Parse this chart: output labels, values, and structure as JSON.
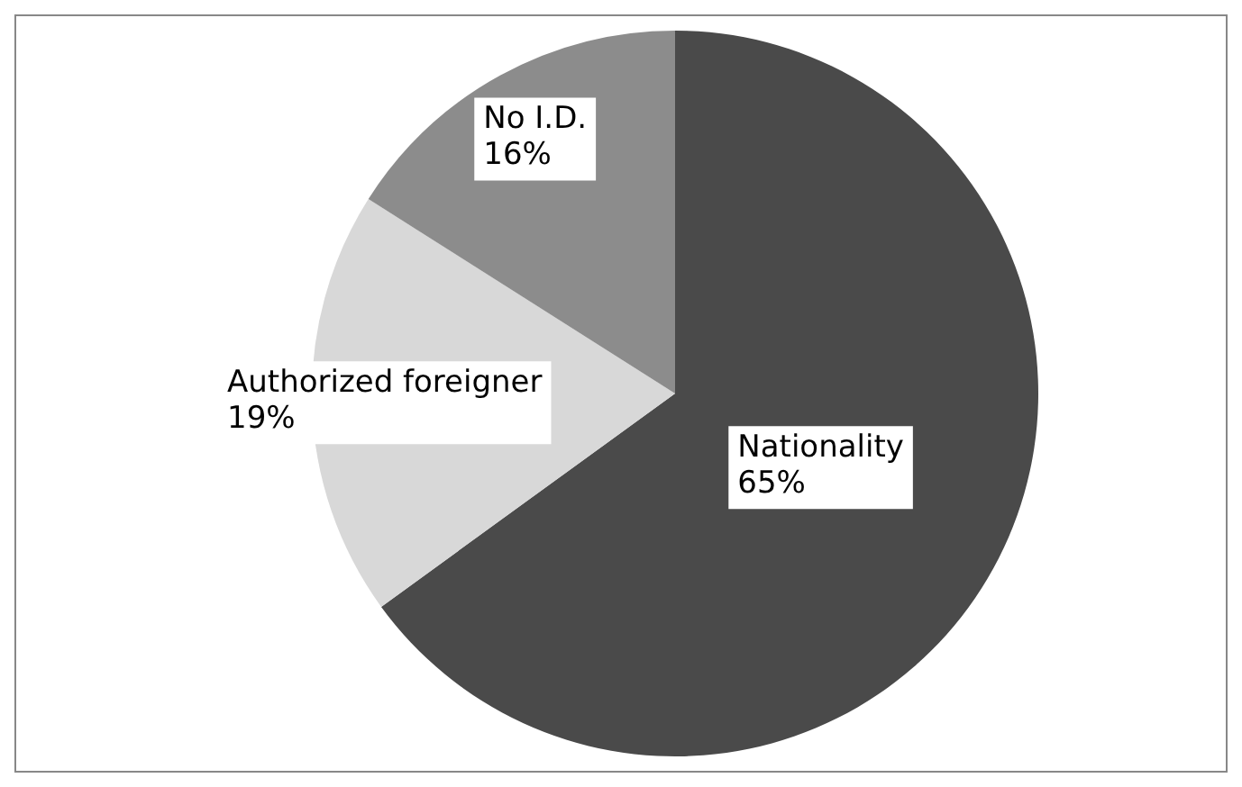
{
  "chart_data": {
    "type": "pie",
    "categories": [
      "Nationality",
      "Authorized foreigner",
      "No I.D."
    ],
    "values": [
      65,
      19,
      16
    ],
    "colors": [
      "#4a4a4a",
      "#d8d8d8",
      "#8c8c8c"
    ],
    "value_labels": [
      "65%",
      "19%",
      "16%"
    ],
    "legend": false
  }
}
